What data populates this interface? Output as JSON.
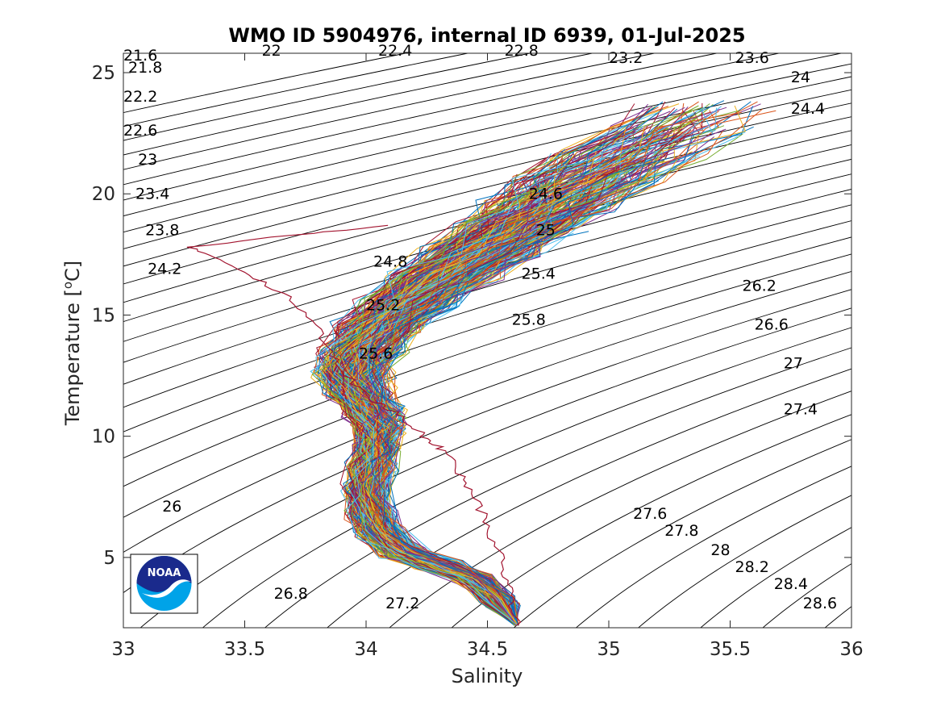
{
  "chart_data": {
    "type": "line",
    "title": "WMO ID 5904976, internal ID 6939, 01-Jul-2025",
    "xlabel": "Salinity",
    "ylabel": "Temperature [°C]",
    "ylabel_prefix": "Temperature [",
    "ylabel_degree": "o",
    "ylabel_suffix": "C]",
    "xlim": [
      33,
      36
    ],
    "ylim": [
      2.1,
      25.8
    ],
    "xticks": [
      "33",
      "33.5",
      "34",
      "34.5",
      "35",
      "35.5",
      "36"
    ],
    "yticks": [
      "5",
      "10",
      "15",
      "20",
      "25"
    ],
    "density_contours": {
      "levels_from": 21.6,
      "levels_to": 28.6,
      "step": 0.2,
      "color": "#000000"
    },
    "density_labels": [
      {
        "text": "21.6",
        "s": 33.0,
        "t": 25.5
      },
      {
        "text": "21.8",
        "s": 33.02,
        "t": 25.0
      },
      {
        "text": "22.2",
        "s": 33.0,
        "t": 23.8
      },
      {
        "text": "22.6",
        "s": 33.0,
        "t": 22.4
      },
      {
        "text": "23",
        "s": 33.06,
        "t": 21.2
      },
      {
        "text": "23.4",
        "s": 33.05,
        "t": 19.8
      },
      {
        "text": "23.8",
        "s": 33.09,
        "t": 18.3
      },
      {
        "text": "24.2",
        "s": 33.1,
        "t": 16.7
      },
      {
        "text": "26",
        "s": 33.16,
        "t": 6.9
      },
      {
        "text": "26.8",
        "s": 33.62,
        "t": 3.3
      },
      {
        "text": "27.2",
        "s": 34.08,
        "t": 2.9
      },
      {
        "text": "22",
        "s": 33.57,
        "t": 25.7
      },
      {
        "text": "22.4",
        "s": 34.05,
        "t": 25.7
      },
      {
        "text": "22.8",
        "s": 34.57,
        "t": 25.7
      },
      {
        "text": "23.2",
        "s": 35.0,
        "t": 25.4
      },
      {
        "text": "23.6",
        "s": 35.52,
        "t": 25.4
      },
      {
        "text": "24",
        "s": 35.75,
        "t": 24.6
      },
      {
        "text": "24.4",
        "s": 35.75,
        "t": 23.3
      },
      {
        "text": "24.6",
        "s": 34.67,
        "t": 19.8
      },
      {
        "text": "24.8",
        "s": 34.03,
        "t": 17.0
      },
      {
        "text": "25",
        "s": 34.7,
        "t": 18.3
      },
      {
        "text": "25.2",
        "s": 34.0,
        "t": 15.2
      },
      {
        "text": "25.4",
        "s": 34.64,
        "t": 16.5
      },
      {
        "text": "25.6",
        "s": 33.97,
        "t": 13.2
      },
      {
        "text": "25.8",
        "s": 34.6,
        "t": 14.6
      },
      {
        "text": "26.2",
        "s": 35.55,
        "t": 16.0
      },
      {
        "text": "26.6",
        "s": 35.6,
        "t": 14.4
      },
      {
        "text": "27",
        "s": 35.72,
        "t": 12.8
      },
      {
        "text": "27.4",
        "s": 35.72,
        "t": 10.9
      },
      {
        "text": "27.6",
        "s": 35.1,
        "t": 6.6
      },
      {
        "text": "27.8",
        "s": 35.23,
        "t": 5.9
      },
      {
        "text": "28",
        "s": 35.42,
        "t": 5.1
      },
      {
        "text": "28.2",
        "s": 35.52,
        "t": 4.4
      },
      {
        "text": "28.4",
        "s": 35.68,
        "t": 3.7
      },
      {
        "text": "28.6",
        "s": 35.8,
        "t": 2.9
      }
    ],
    "profiles": {
      "count": 300,
      "main_track": {
        "s": [
          34.62,
          34.55,
          34.45,
          34.3,
          34.15,
          34.06,
          34.02,
          34.0,
          34.02,
          34.04,
          34.05,
          34.03,
          33.97,
          33.94,
          33.98,
          34.06,
          34.17,
          34.32,
          34.48,
          34.62,
          34.76,
          34.9,
          35.06,
          35.24,
          35.38
        ],
        "t": [
          2.2,
          3.2,
          4.1,
          4.7,
          5.2,
          6.0,
          6.8,
          7.8,
          8.7,
          9.5,
          10.3,
          11.0,
          11.8,
          12.6,
          13.5,
          14.5,
          15.5,
          16.6,
          17.6,
          18.6,
          19.5,
          20.6,
          21.6,
          22.6,
          23.6
        ]
      },
      "scatter_s": [
        0.06,
        0.06,
        0.06,
        0.07,
        0.07,
        0.07,
        0.07,
        0.06,
        0.06,
        0.05,
        0.06,
        0.08,
        0.1,
        0.11,
        0.12,
        0.13,
        0.14,
        0.16,
        0.18,
        0.2,
        0.22,
        0.24,
        0.25,
        0.25,
        0.24
      ],
      "colors": [
        "#0072BD",
        "#D95319",
        "#EDB120",
        "#7E2F8E",
        "#77AC30",
        "#4DBEEE",
        "#A2142F"
      ],
      "outlier": {
        "s": [
          34.62,
          34.6,
          34.58,
          34.56,
          34.52,
          34.48,
          34.42,
          34.38,
          34.32,
          34.25,
          34.2,
          34.12,
          34.02,
          33.92,
          33.85,
          33.8,
          33.7,
          33.55,
          33.4,
          33.27,
          33.7,
          34.1
        ],
        "t": [
          2.2,
          3.0,
          3.9,
          4.8,
          5.8,
          6.8,
          7.8,
          8.6,
          9.4,
          9.9,
          10.4,
          11.0,
          11.5,
          12.5,
          13.5,
          14.6,
          15.6,
          16.5,
          17.3,
          17.8,
          18.3,
          18.7
        ]
      }
    },
    "series": []
  },
  "logo": {
    "text": "NOAA",
    "colors": {
      "dark": "#1a2a8c",
      "light": "#00a3e8",
      "white": "#ffffff"
    }
  }
}
